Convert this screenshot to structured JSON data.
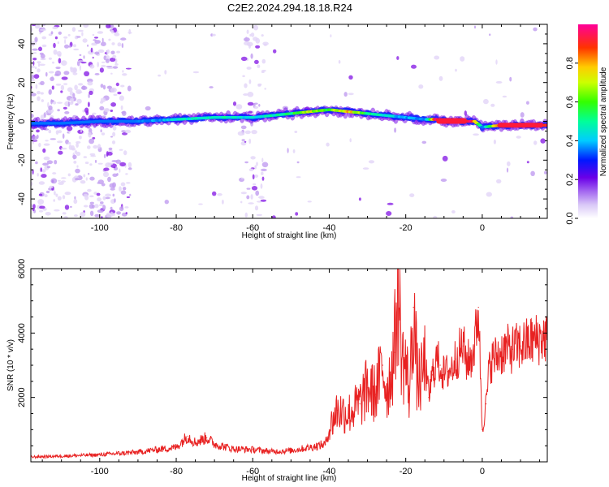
{
  "chart_data": [
    {
      "type": "heatmap",
      "title": "C2E2.2024.294.18.18.R24",
      "xlabel": "Height of straight line (km)",
      "ylabel": "Frequency (Hz)",
      "xlim": [
        -118,
        17
      ],
      "ylim": [
        -50,
        50
      ],
      "xticks": [
        -100,
        -80,
        -60,
        -40,
        -20,
        0
      ],
      "yticks": [
        -40,
        -20,
        0,
        20,
        40
      ],
      "grid": false,
      "colorbar": {
        "label": "Normalized spectral amplitude",
        "range": [
          0,
          1
        ],
        "ticks": [
          "0.0",
          "0.2",
          "0.4",
          "0.6",
          "0.8"
        ]
      },
      "colors": {
        "background": "#ffffff",
        "scatter": "#b98ef0",
        "low": "#7a00e6",
        "mid": "#00e6ff",
        "high": "#ff1a4d"
      },
      "ridge": {
        "x": [
          -118,
          -110,
          -100,
          -90,
          -80,
          -70,
          -60,
          -50,
          -45,
          -40,
          -35,
          -30,
          -25,
          -20,
          -15,
          -12,
          -8,
          -4,
          -2,
          0,
          5,
          10,
          17
        ],
        "y": [
          -1,
          -1,
          0,
          0,
          1,
          2,
          2,
          4,
          5,
          6,
          5,
          4,
          3,
          2,
          1,
          1,
          0,
          0,
          0,
          -3,
          -2,
          -2,
          -2
        ],
        "value": [
          0.15,
          0.2,
          0.3,
          0.35,
          0.45,
          0.5,
          0.45,
          0.55,
          0.75,
          0.6,
          0.85,
          0.55,
          0.45,
          0.4,
          0.35,
          0.95,
          1.0,
          1.0,
          0.9,
          0.35,
          0.95,
          0.95,
          0.9
        ]
      }
    },
    {
      "type": "line",
      "xlabel": "Height of straight line (km)",
      "ylabel": "SNR (10 * v/v)",
      "xlim": [
        -118,
        17
      ],
      "ylim": [
        0,
        6000
      ],
      "xticks": [
        -100,
        -80,
        -60,
        -40,
        -20,
        0
      ],
      "yticks": [
        2000,
        4000,
        6000
      ],
      "grid": false,
      "colors": {
        "line": "#e82222"
      },
      "series": [
        {
          "x": [
            -118,
            -110,
            -100,
            -95,
            -90,
            -85,
            -80,
            -77,
            -75,
            -72,
            -70,
            -65,
            -60,
            -55,
            -50,
            -45,
            -41,
            -40,
            -38,
            -35,
            -32,
            -30,
            -28,
            -26,
            -25,
            -24,
            -23,
            -22,
            -21,
            -20,
            -19,
            -18,
            -17,
            -16,
            -15,
            -14,
            -13,
            -12,
            -11,
            -10,
            -9,
            -8,
            -7,
            -6,
            -5,
            -4,
            -3,
            -2,
            -1,
            0,
            1,
            2,
            4,
            6,
            8,
            10,
            12,
            14,
            17
          ],
          "y": [
            150,
            180,
            220,
            260,
            300,
            380,
            450,
            800,
            600,
            750,
            550,
            400,
            380,
            320,
            350,
            450,
            550,
            1000,
            1600,
            1500,
            1800,
            2300,
            2100,
            3000,
            2200,
            2700,
            3400,
            5500,
            3200,
            3000,
            2100,
            4800,
            2600,
            2500,
            3100,
            2000,
            2700,
            3200,
            3000,
            2700,
            2800,
            2900,
            3200,
            3400,
            3600,
            3100,
            3200,
            3600,
            4800,
            1000,
            1800,
            3100,
            3300,
            3500,
            3500,
            3600,
            3700,
            3800,
            3900
          ]
        }
      ]
    }
  ]
}
